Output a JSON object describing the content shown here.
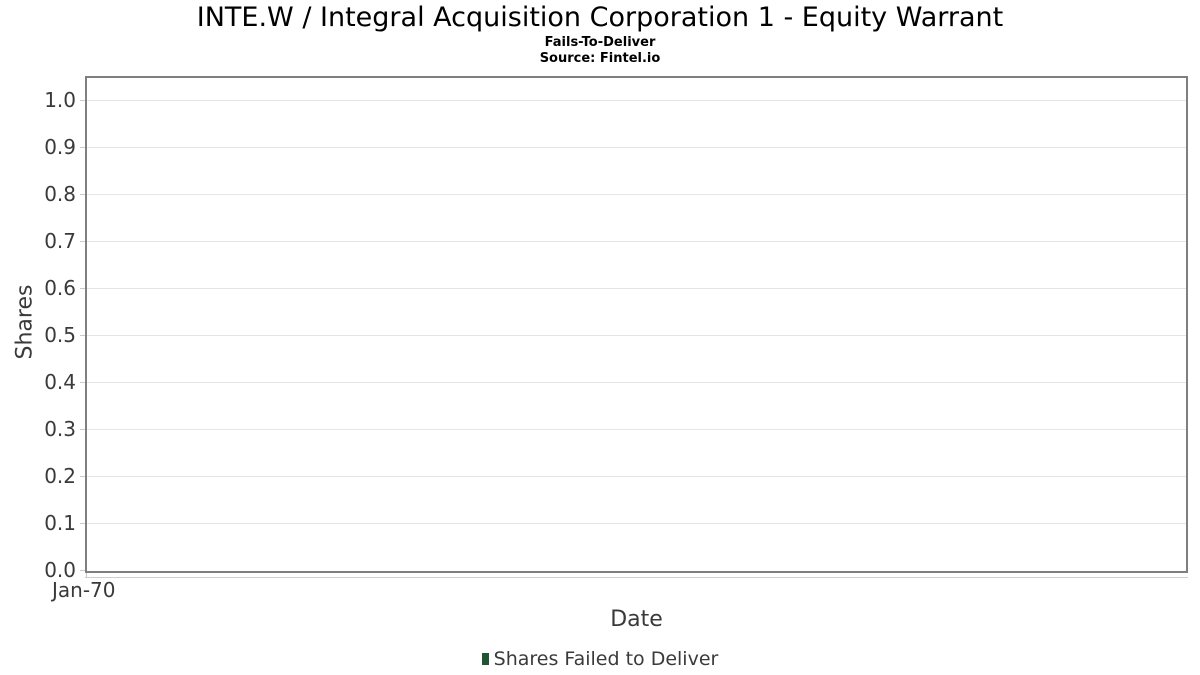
{
  "chart_data": {
    "type": "bar",
    "title": "INTE.W / Integral Acquisition Corporation 1 - Equity Warrant",
    "subtitle": "Fails-To-Deliver",
    "source": "Source: Fintel.io",
    "xlabel": "Date",
    "ylabel": "Shares",
    "x_tick_labels": [
      "Jan-70"
    ],
    "y_tick_labels": [
      "1.0",
      "0.9",
      "0.8",
      "0.7",
      "0.6",
      "0.5",
      "0.4",
      "0.3",
      "0.2",
      "0.1",
      "0.0"
    ],
    "ylim": [
      0,
      1.05
    ],
    "grid": true,
    "legend_position": "bottom",
    "categories": [],
    "series": [
      {
        "name": "Shares Failed to Deliver",
        "color": "#1e5631",
        "values": []
      }
    ],
    "colors": {
      "plot_border": "#7f7f7f",
      "gridline": "#e5e5e5",
      "axis_text": "#3a3a3a",
      "title_text": "#000000",
      "legend_marker": "#1e5631"
    }
  }
}
